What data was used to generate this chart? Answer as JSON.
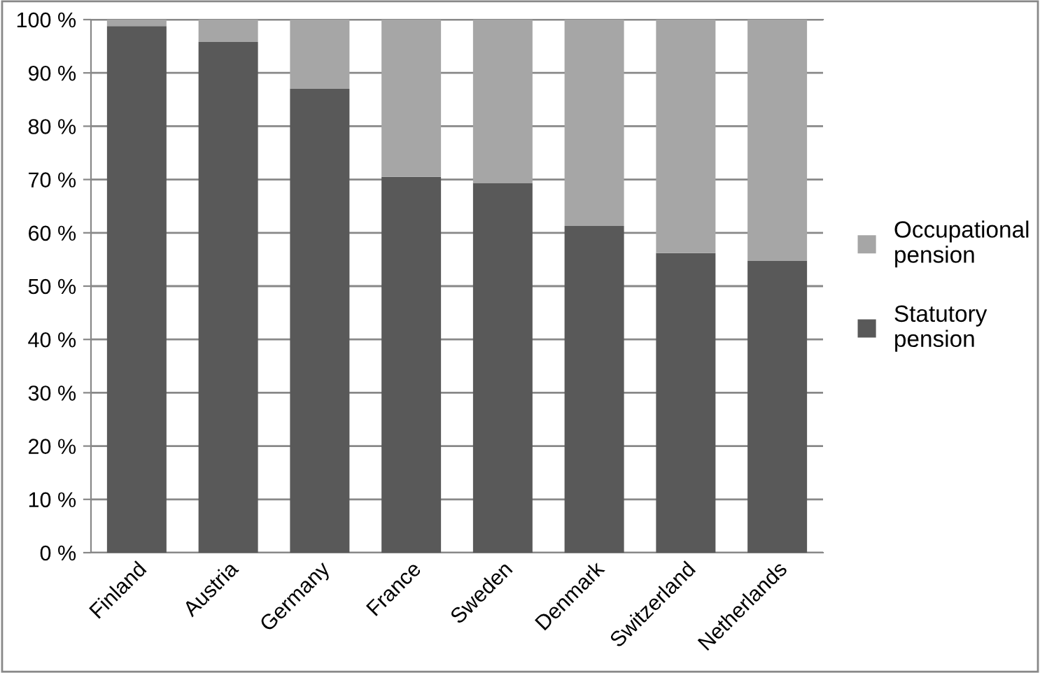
{
  "chart_data": {
    "type": "bar",
    "stacked": true,
    "categories": [
      "Finland",
      "Austria",
      "Germany",
      "France",
      "Sweden",
      "Denmark",
      "Switzerland",
      "Netherlands"
    ],
    "series": [
      {
        "name": "Statutory pension",
        "color": "#595959",
        "values": [
          98.8,
          95.8,
          87,
          70.5,
          69.3,
          61.3,
          56.2,
          54.8
        ]
      },
      {
        "name": "Occupational pension",
        "color": "#a6a6a6",
        "values": [
          1.2,
          4.2,
          13,
          29.5,
          30.7,
          38.7,
          43.8,
          45.2
        ]
      }
    ],
    "ylim": [
      0,
      100
    ],
    "yticks": [
      {
        "value": 0,
        "label": "0 %"
      },
      {
        "value": 10,
        "label": "10 %"
      },
      {
        "value": 20,
        "label": "20 %"
      },
      {
        "value": 30,
        "label": "30 %"
      },
      {
        "value": 40,
        "label": "40 %"
      },
      {
        "value": 50,
        "label": "50 %"
      },
      {
        "value": 60,
        "label": "60 %"
      },
      {
        "value": 70,
        "label": "70 %"
      },
      {
        "value": 80,
        "label": "80 %"
      },
      {
        "value": 90,
        "label": "90 %"
      },
      {
        "value": 100,
        "label": "100 %"
      }
    ],
    "grid": "y",
    "legend": "right"
  }
}
